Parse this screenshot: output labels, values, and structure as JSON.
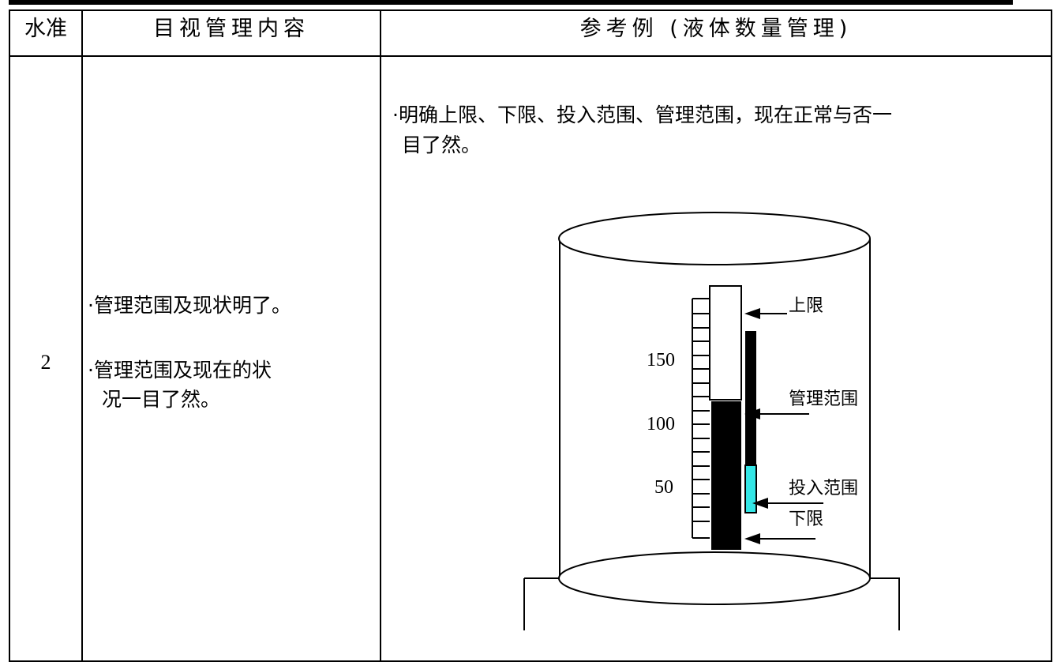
{
  "table": {
    "headers": [
      "水准",
      "目视管理内容",
      "参考例 (液体数量管理)"
    ],
    "level": "2",
    "content": [
      "·管理范围及现状明了。",
      "·管理范围及现在的状",
      "况一目了然。"
    ],
    "example_desc": [
      "·明确上限、下限、投入范围、管理范围，现在正常与否一",
      "目了然。"
    ]
  },
  "diagram": {
    "scale_labels": [
      "150",
      "100",
      "50"
    ],
    "labels": {
      "upper": "上限",
      "mgmt": "管理范围",
      "input": "投入范围",
      "lower": "下限"
    },
    "colors": {
      "liquid": "#000000",
      "input_range": "#33e6e6",
      "empty": "#ffffff"
    }
  }
}
